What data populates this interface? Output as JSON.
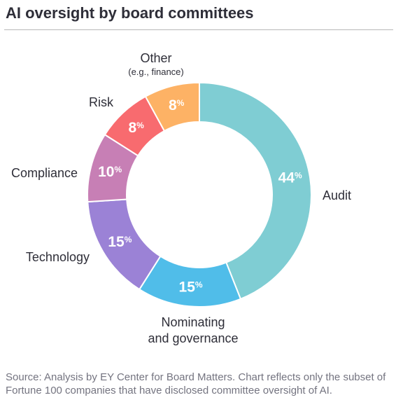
{
  "header": {
    "title": "AI oversight by board committees"
  },
  "chart_data": {
    "type": "pie",
    "variant": "donut",
    "title": "AI oversight by board committees",
    "unit_symbol": "%",
    "slices": [
      {
        "label": "Audit",
        "sub": "",
        "value": 44,
        "color": "#7fcdd3"
      },
      {
        "label": "Nominating",
        "sub": "and governance",
        "value": 15,
        "color": "#50bde9"
      },
      {
        "label": "Technology",
        "sub": "",
        "value": 15,
        "color": "#9b82d6"
      },
      {
        "label": "Compliance",
        "sub": "",
        "value": 10,
        "color": "#c77fb5"
      },
      {
        "label": "Risk",
        "sub": "",
        "value": 8,
        "color": "#f86b6f"
      },
      {
        "label": "Other",
        "sub": "(e.g., finance)",
        "value": 8,
        "color": "#fdb265"
      }
    ]
  },
  "footer": {
    "source": "Source: Analysis by EY Center for Board Matters. Chart reflects only the subset of Fortune 100 companies that have disclosed committee oversight of AI."
  }
}
